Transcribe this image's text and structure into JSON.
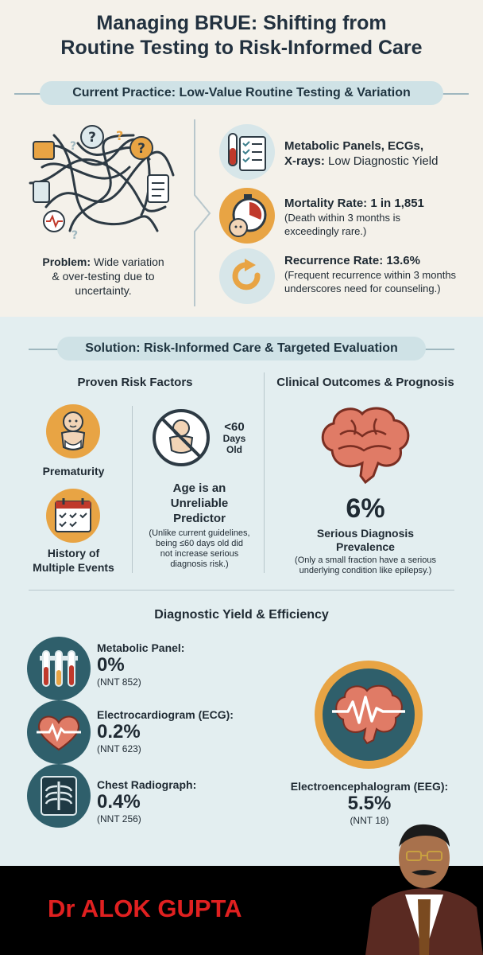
{
  "title": {
    "line1": "Managing BRUE: Shifting from",
    "line2": "Routine Testing to Risk-Informed Care"
  },
  "current_practice": {
    "banner": "Current Practice: Low-Value Routine Testing & Variation",
    "problem_label": "Problem:",
    "problem_text_1": "Wide variation",
    "problem_text_2": "& over-testing due to",
    "problem_text_3": "uncertainty.",
    "items": [
      {
        "title_1": "Metabolic Panels, ECGs,",
        "title_2_bold": "X-rays:",
        "title_2_rest": "Low Diagnostic Yield"
      },
      {
        "title": "Mortality Rate: 1 in 1,851",
        "note_1": "(Death within 3 months is",
        "note_2": "exceedingly rare.)"
      },
      {
        "title": "Recurrence Rate: 13.6%",
        "note_1": "(Frequent recurrence within 3 months",
        "note_2": "underscores need for counseling.)"
      }
    ]
  },
  "solution": {
    "banner": "Solution: Risk-Informed Care & Targeted Evaluation",
    "risk_factors": {
      "heading": "Proven Risk Factors",
      "prematurity": "Prematurity",
      "history_1": "History of",
      "history_2": "Multiple Events",
      "age_badge_1": "<60",
      "age_badge_2": "Days",
      "age_badge_3": "Old",
      "age_title_1": "Age is an",
      "age_title_2": "Unreliable",
      "age_title_3": "Predictor",
      "age_note_1": "(Unlike current guidelines,",
      "age_note_2": "being ≤60 days old did",
      "age_note_3": "not increase serious",
      "age_note_4": "diagnosis risk.)"
    },
    "outcomes": {
      "heading": "Clinical Outcomes & Prognosis",
      "percent": "6%",
      "label_1": "Serious Diagnosis",
      "label_2": "Prevalence",
      "note_1": "(Only a small fraction have a serious",
      "note_2": "underlying condition like epilepsy.)"
    }
  },
  "diagnostic": {
    "heading": "Diagnostic Yield & Efficiency",
    "tests": [
      {
        "name": "Metabolic Panel:",
        "value": "0%",
        "nnt": "(NNT 852)"
      },
      {
        "name": "Electrocardiogram (ECG):",
        "value": "0.2%",
        "nnt": "(NNT 623)"
      },
      {
        "name": "Chest Radiograph:",
        "value": "0.4%",
        "nnt": "(NNT 256)"
      }
    ],
    "eeg": {
      "name": "Electroencephalogram (EEG):",
      "value": "5.5%",
      "nnt": "(NNT 18)"
    }
  },
  "footer": {
    "author": "Dr ALOK GUPTA"
  },
  "colors": {
    "teal": "#3c7f8c",
    "dark_teal": "#2f5f6b",
    "orange": "#e8a444",
    "red": "#c0392b",
    "brain_pink": "#e07b66",
    "footer_text": "#e02020"
  }
}
